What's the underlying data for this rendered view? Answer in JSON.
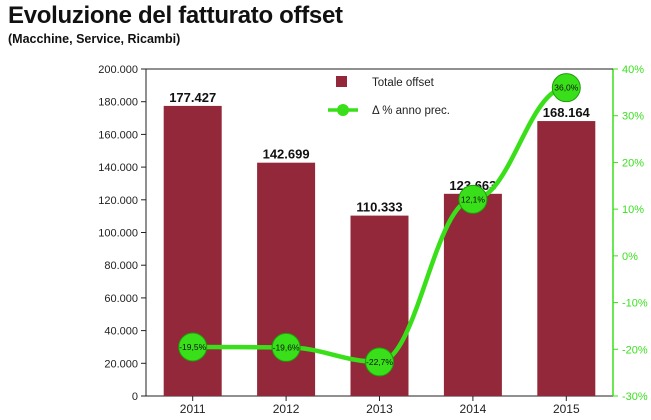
{
  "title": "Evoluzione del fatturato offset",
  "subtitle": "(Macchine, Service, Ricambi)",
  "chart_data": {
    "type": "bar",
    "categories": [
      "2011",
      "2012",
      "2013",
      "2014",
      "2015"
    ],
    "series": [
      {
        "name": "Totale offset",
        "type": "bar",
        "axis": "left",
        "values": [
          177427,
          142699,
          110333,
          123663,
          168164
        ],
        "labels": [
          "177.427",
          "142.699",
          "110.333",
          "123.663",
          "168.164"
        ],
        "color": "#93283a"
      },
      {
        "name": "Δ % anno prec.",
        "type": "line",
        "axis": "right",
        "values": [
          -19.5,
          -19.6,
          -22.7,
          12.1,
          36.0
        ],
        "labels": [
          "-19,5%",
          "-19,6%",
          "-22,7%",
          "12,1%",
          "36,0%"
        ],
        "color": "#39e019"
      }
    ],
    "ylim": [
      0,
      200000
    ],
    "yticks": [
      "0",
      "20.000",
      "40.000",
      "60.000",
      "80.000",
      "100.000",
      "120.000",
      "140.000",
      "160.000",
      "180.000",
      "200.000"
    ],
    "y2lim": [
      -30,
      40
    ],
    "y2ticks": [
      "-30%",
      "-20%",
      "-10%",
      "0%",
      "10%",
      "20%",
      "30%",
      "40%"
    ],
    "grid": false,
    "legend": "top-center"
  }
}
